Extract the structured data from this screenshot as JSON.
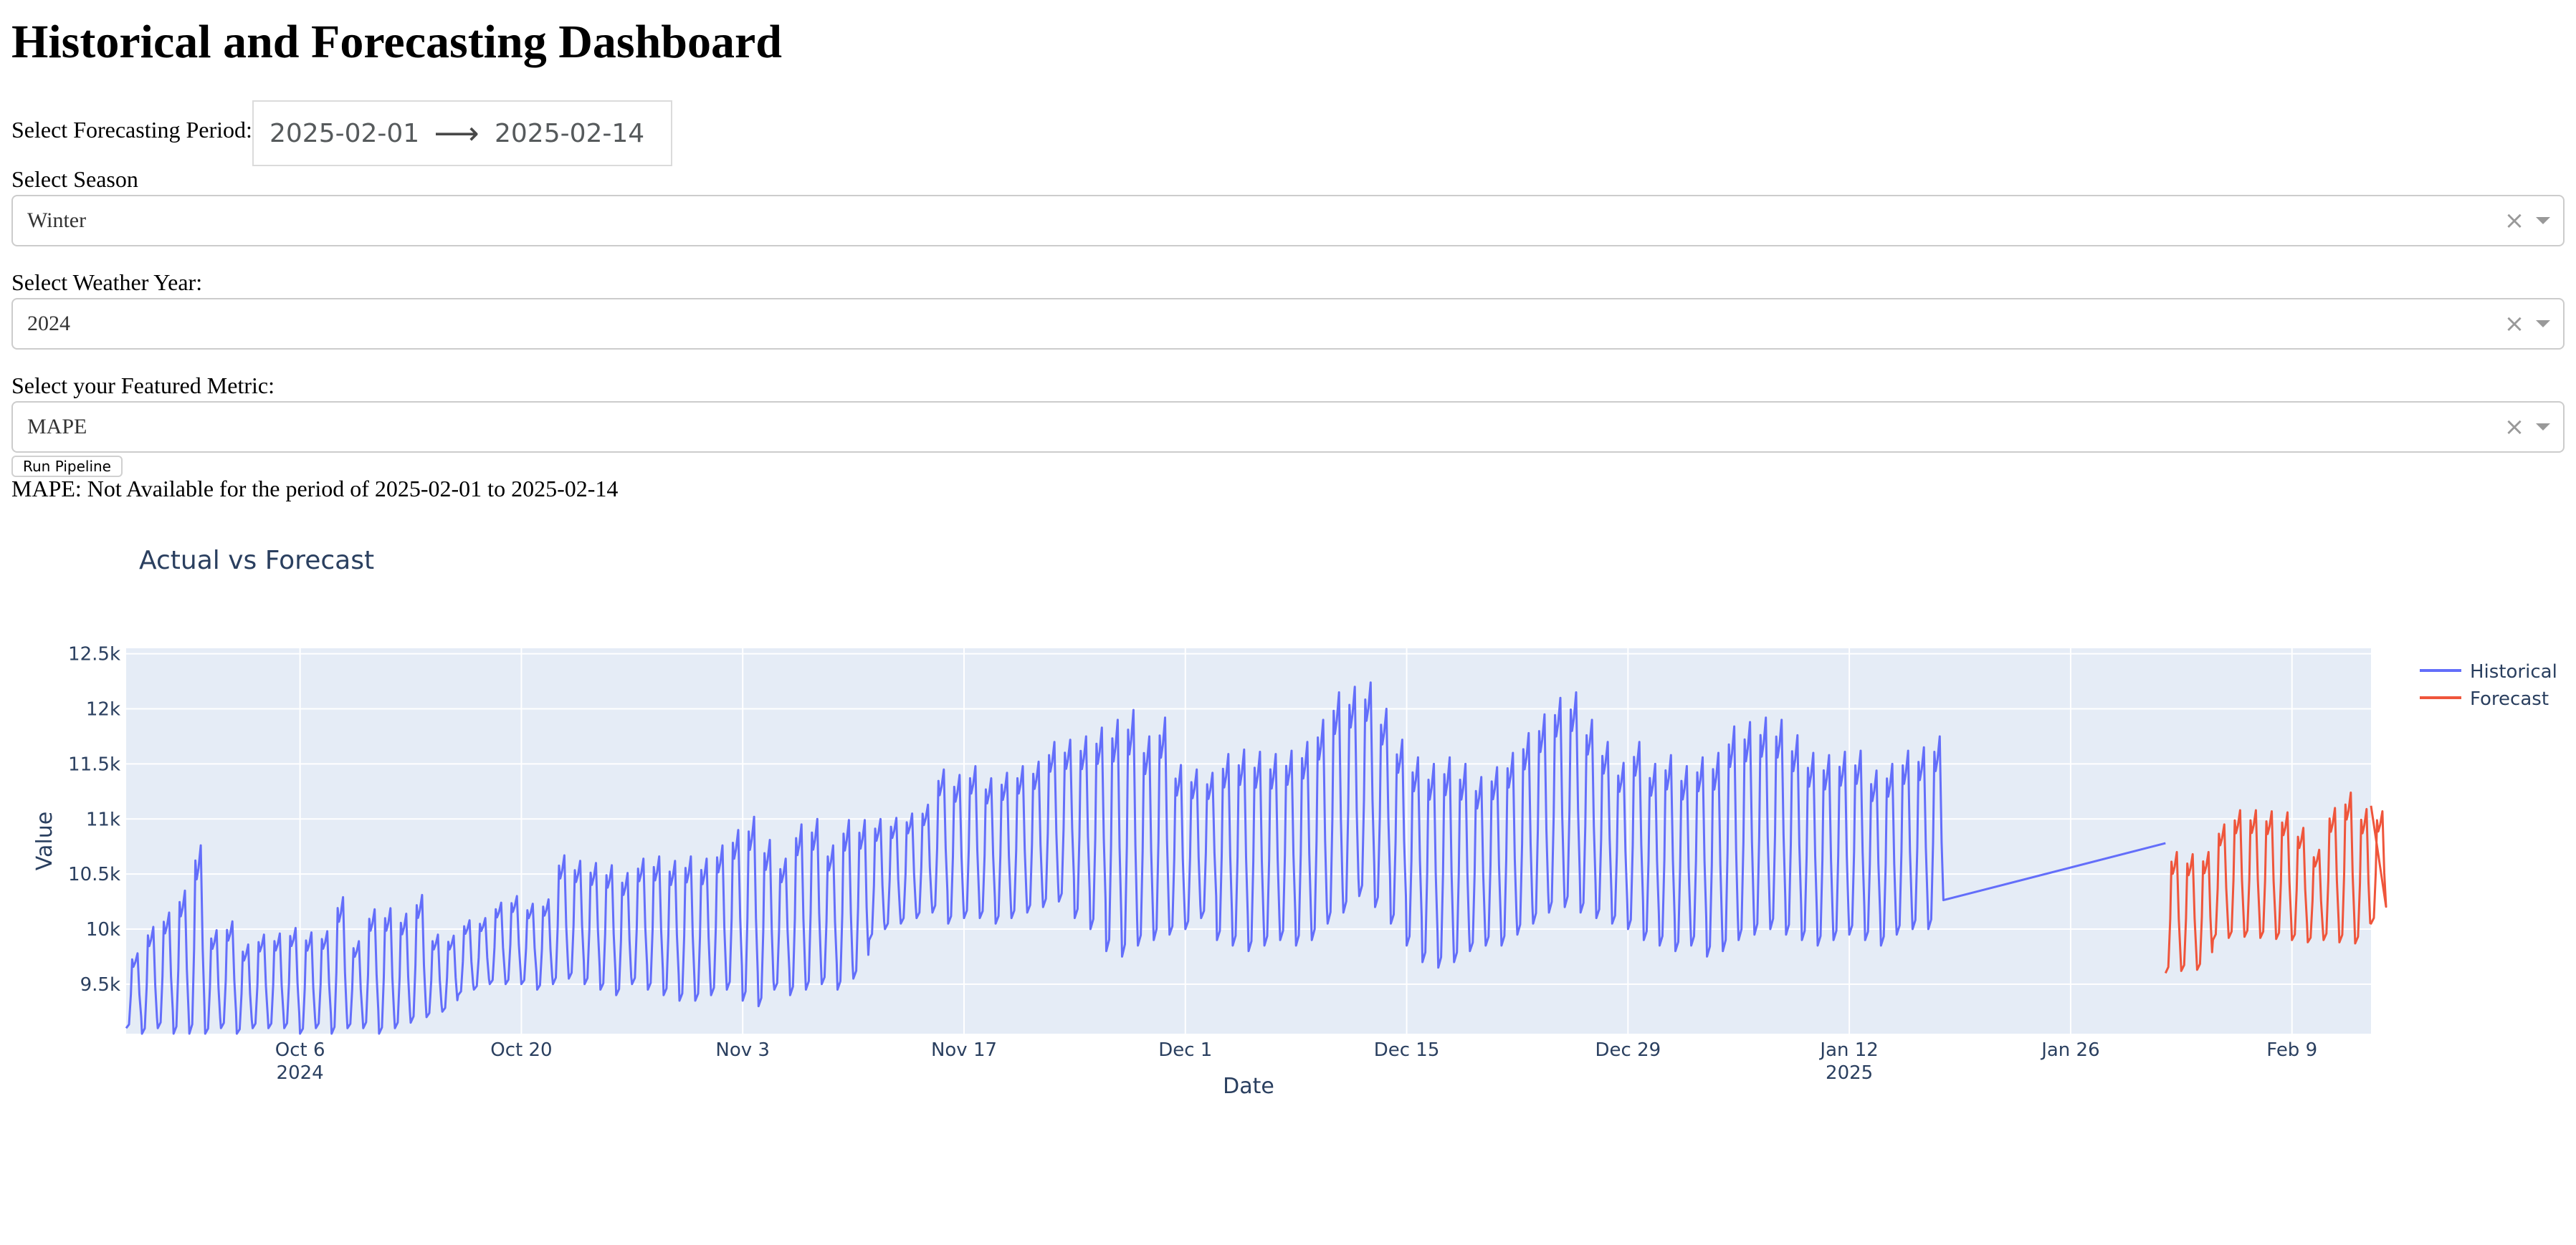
{
  "header": {
    "title": "Historical and Forecasting Dashboard"
  },
  "period": {
    "label": "Select Forecasting Period:",
    "start": "2025-02-01",
    "arrow": "⟶",
    "end": "2025-02-14"
  },
  "season": {
    "label": "Select Season",
    "value": "Winter",
    "clear": "×"
  },
  "weather_year": {
    "label": "Select Weather Year:",
    "value": "2024",
    "clear": "×"
  },
  "metric": {
    "label": "Select your Featured Metric:",
    "value": "MAPE",
    "clear": "×"
  },
  "run_button": {
    "label": "Run Pipeline"
  },
  "status": {
    "text": "MAPE: Not Available for the period of 2025-02-01 to 2025-02-14"
  },
  "chart_data": {
    "type": "line",
    "title": "Actual vs Forecast",
    "xlabel": "Date",
    "ylabel": "Value",
    "x_range": [
      "2024-09-25",
      "2025-02-14"
    ],
    "ylim": [
      9050,
      12550
    ],
    "y_ticks": [
      {
        "value": 9500,
        "label": "9.5k"
      },
      {
        "value": 10000,
        "label": "10k"
      },
      {
        "value": 10500,
        "label": "10.5k"
      },
      {
        "value": 11000,
        "label": "11k"
      },
      {
        "value": 11500,
        "label": "11.5k"
      },
      {
        "value": 12000,
        "label": "12k"
      },
      {
        "value": 12500,
        "label": "12.5k"
      }
    ],
    "x_ticks": [
      {
        "date": "2024-10-06",
        "label": "Oct 6",
        "sublabel": "2024"
      },
      {
        "date": "2024-10-20",
        "label": "Oct 20",
        "sublabel": ""
      },
      {
        "date": "2024-11-03",
        "label": "Nov 3",
        "sublabel": ""
      },
      {
        "date": "2024-11-17",
        "label": "Nov 17",
        "sublabel": ""
      },
      {
        "date": "2024-12-01",
        "label": "Dec 1",
        "sublabel": ""
      },
      {
        "date": "2024-12-15",
        "label": "Dec 15",
        "sublabel": ""
      },
      {
        "date": "2024-12-29",
        "label": "Dec 29",
        "sublabel": ""
      },
      {
        "date": "2025-01-12",
        "label": "Jan 12",
        "sublabel": "2025"
      },
      {
        "date": "2025-01-26",
        "label": "Jan 26",
        "sublabel": ""
      },
      {
        "date": "2025-02-09",
        "label": "Feb 9",
        "sublabel": ""
      }
    ],
    "legend_position": "top-right",
    "series": [
      {
        "name": "Historical",
        "color": "#636efa",
        "x_start": "2024-09-25",
        "x_end": "2025-02-01",
        "daily_peaks": [
          9780,
          10020,
          10150,
          10350,
          10760,
          9990,
          10070,
          9860,
          9950,
          9960,
          10010,
          9970,
          9980,
          10290,
          9890,
          10180,
          10190,
          10140,
          10310,
          9950,
          9940,
          10080,
          10100,
          10240,
          10300,
          10230,
          10270,
          10670,
          10620,
          10600,
          10580,
          10510,
          10640,
          10660,
          10620,
          10660,
          10640,
          10760,
          10900,
          11020,
          10810,
          10640,
          10950,
          11000,
          10760,
          10990,
          10990,
          11000,
          11010,
          11050,
          11130,
          11450,
          11400,
          11480,
          11370,
          11420,
          11480,
          11520,
          11700,
          11720,
          11750,
          11830,
          11900,
          11990,
          11750,
          11920,
          11490,
          11450,
          11420,
          11590,
          11630,
          11610,
          11590,
          11620,
          11700,
          11900,
          12150,
          12200,
          12240,
          12000,
          11720,
          11560,
          11500,
          11560,
          11500,
          11380,
          11470,
          11600,
          11780,
          11950,
          12100,
          12150,
          11900,
          11700,
          11510,
          11700,
          11500,
          11580,
          11480,
          11560,
          11600,
          11840,
          11880,
          11920,
          11900,
          11760,
          11600,
          11580,
          11610,
          11620,
          11440,
          11500,
          11620,
          11650,
          11750
        ],
        "daily_troughs": [
          9100,
          9050,
          9100,
          9050,
          9050,
          9050,
          9100,
          9050,
          9100,
          9100,
          9100,
          9050,
          9100,
          9050,
          9100,
          9100,
          9050,
          9100,
          9150,
          9200,
          9250,
          9400,
          9450,
          9500,
          9500,
          9500,
          9450,
          9500,
          9550,
          9500,
          9450,
          9400,
          9500,
          9450,
          9400,
          9350,
          9350,
          9400,
          9450,
          9350,
          9300,
          9450,
          9400,
          9450,
          9500,
          9450,
          9550,
          9900,
          10000,
          10050,
          10100,
          10150,
          10050,
          10100,
          10100,
          10050,
          10100,
          10150,
          10200,
          10250,
          10100,
          10000,
          9800,
          9750,
          9850,
          9900,
          9950,
          10000,
          10100,
          9900,
          9850,
          9800,
          9850,
          9900,
          9850,
          9900,
          10050,
          10150,
          10300,
          10200,
          10050,
          9850,
          9700,
          9650,
          9700,
          9800,
          9850,
          9850,
          9950,
          10050,
          10150,
          10200,
          10150,
          10100,
          10050,
          10000,
          9900,
          9850,
          9800,
          9850,
          9750,
          9800,
          9900,
          9950,
          10000,
          9950,
          9900,
          9850,
          9900,
          9950,
          9900,
          9850,
          9950,
          10000,
          10000
        ],
        "end_value": 10780
      },
      {
        "name": "Forecast",
        "color": "#ef553b",
        "x_start": "2025-02-01",
        "x_end": "2025-02-14",
        "daily_peaks": [
          10700,
          10680,
          10700,
          10950,
          11080,
          11080,
          11070,
          11060,
          10920,
          10720,
          11100,
          11240,
          11090,
          11070
        ],
        "daily_troughs": [
          9600,
          9620,
          9630,
          9900,
          9920,
          9930,
          9920,
          9910,
          9900,
          9880,
          9900,
          9880,
          9870,
          10050
        ],
        "end_value": 11120
      }
    ]
  }
}
